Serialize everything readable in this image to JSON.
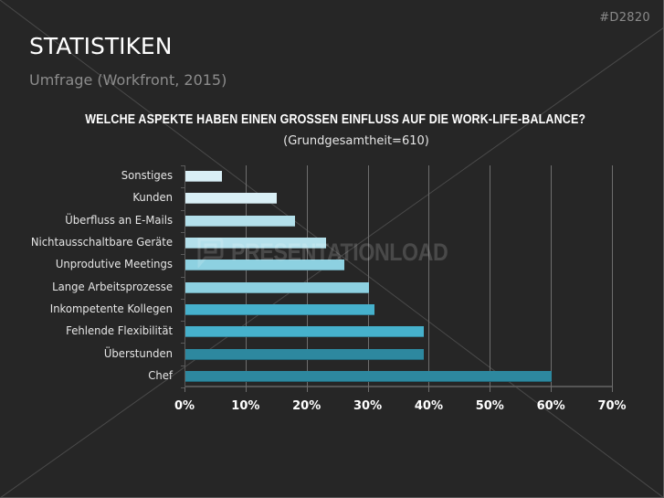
{
  "slide": {
    "id_label": "#D2820",
    "title": "STATISTIKEN",
    "subtitle": "Umfrage (Workfront, 2015)",
    "watermark": "PRESENTATIONLOAD",
    "colors": {
      "background": "#262626",
      "title": "#ffffff",
      "subtitle": "#8c8c8c",
      "gridline": "#6e6e6e"
    }
  },
  "chart_data": {
    "type": "bar",
    "orientation": "horizontal",
    "title": "WELCHE ASPEKTE HABEN EINEN GROSSEN EINFLUSS AUF DIE WORK-LIFE-BALANCE?",
    "subtitle": "(Grundgesamtheit=610)",
    "xlabel": "",
    "ylabel": "",
    "xlim": [
      0,
      70
    ],
    "x_ticks": [
      "0%",
      "10%",
      "20%",
      "30%",
      "40%",
      "50%",
      "60%",
      "70%"
    ],
    "grid": true,
    "legend": null,
    "categories": [
      "Sonstiges",
      "Kunden",
      "Überfluss an E-Mails",
      "Nichtausschaltbare Geräte",
      "Unprodutive Meetings",
      "Lange Arbeitsprozesse",
      "Inkompetente Kollegen",
      "Fehlende Flexibilität",
      "Überstunden",
      "Chef"
    ],
    "values": [
      6,
      15,
      18,
      23,
      26,
      30,
      31,
      39,
      39,
      60
    ],
    "unit": "%",
    "bar_colors": [
      "#d9eff6",
      "#d9eff6",
      "#b3e0eb",
      "#b3e0eb",
      "#8dd1e1",
      "#8dd1e1",
      "#46b1cc",
      "#46b1cc",
      "#2d889f",
      "#2d889f"
    ]
  }
}
